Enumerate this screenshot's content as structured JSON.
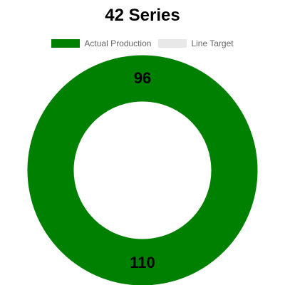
{
  "chart_data": {
    "type": "pie",
    "title": "42 Series",
    "categories": [
      "Actual Production",
      "Line Target"
    ],
    "values": [
      110,
      96
    ],
    "colors": [
      "#008000",
      "#e8e8e8"
    ],
    "legend_position": "top",
    "labels": [
      "110",
      "96"
    ]
  }
}
